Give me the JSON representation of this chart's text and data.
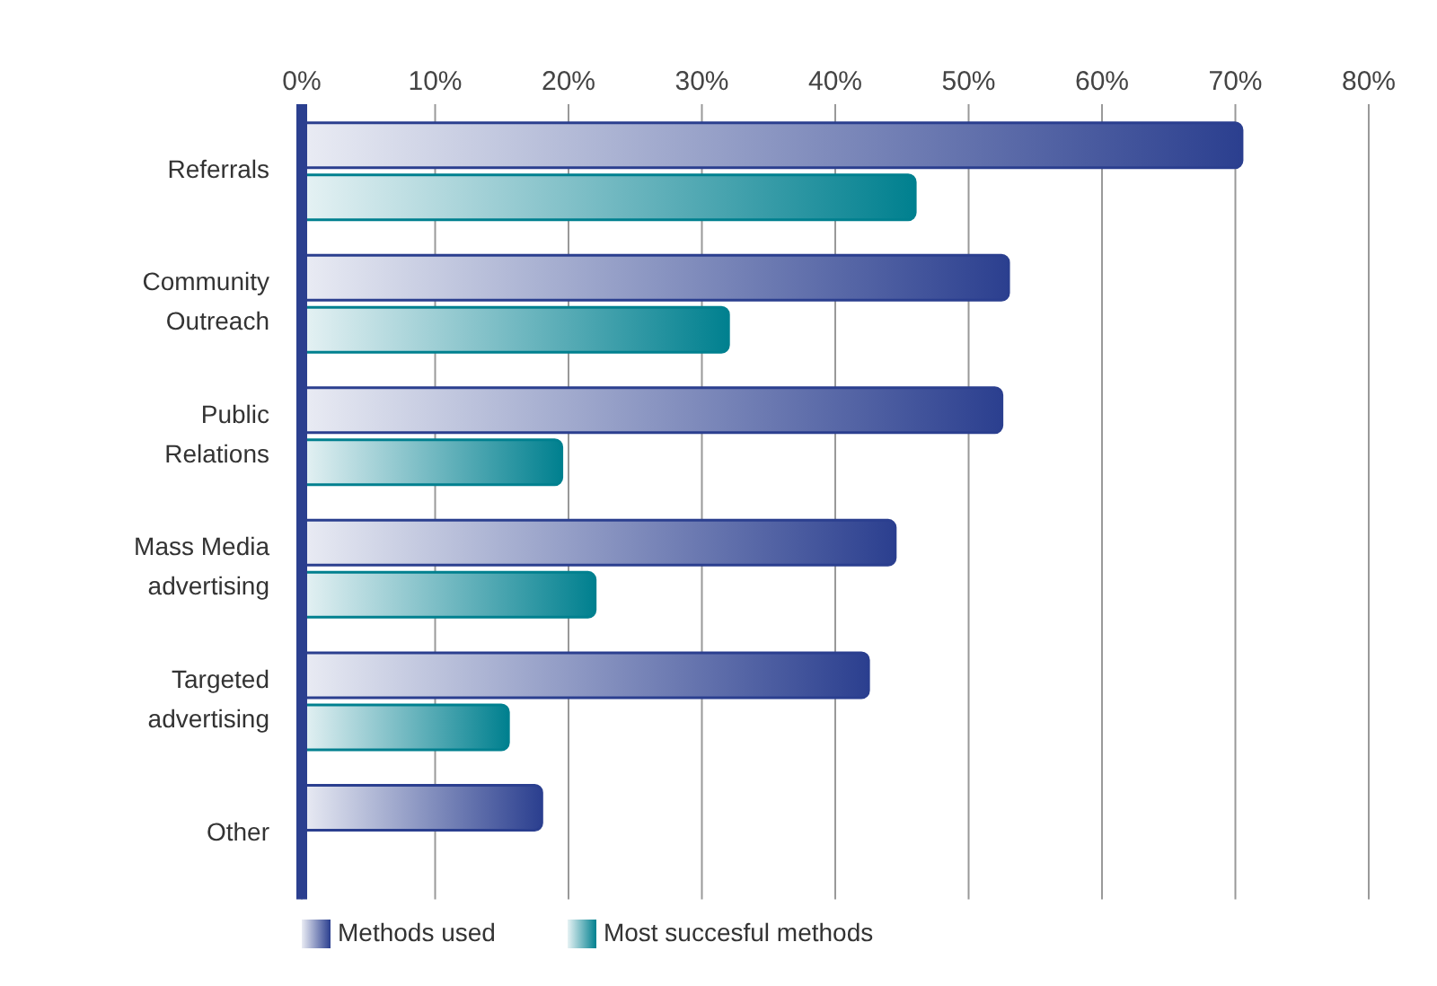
{
  "chart_data": {
    "type": "bar",
    "orientation": "horizontal",
    "categories": [
      "Referrals",
      "Community Outreach",
      "Public Relations",
      "Mass Media advertising",
      "Targeted advertising",
      "Other"
    ],
    "series": [
      {
        "name": "Methods used",
        "color": "#2b3f8f",
        "values": [
          70.5,
          53,
          52.5,
          44.5,
          42.5,
          18
        ]
      },
      {
        "name": "Most succesful methods",
        "color": "#00808f",
        "values": [
          46,
          32,
          19.5,
          22,
          15.5,
          null
        ]
      }
    ],
    "xlim": [
      0,
      80
    ],
    "xticks": [
      {
        "value": 0,
        "label": "0%"
      },
      {
        "value": 10,
        "label": "10%"
      },
      {
        "value": 20,
        "label": "20%"
      },
      {
        "value": 30,
        "label": "30%"
      },
      {
        "value": 40,
        "label": "40%"
      },
      {
        "value": 50,
        "label": "50%"
      },
      {
        "value": 60,
        "label": "60%"
      },
      {
        "value": 70,
        "label": "70%"
      },
      {
        "value": 80,
        "label": "80%"
      }
    ],
    "grid": "x",
    "legend": "bottom left"
  }
}
